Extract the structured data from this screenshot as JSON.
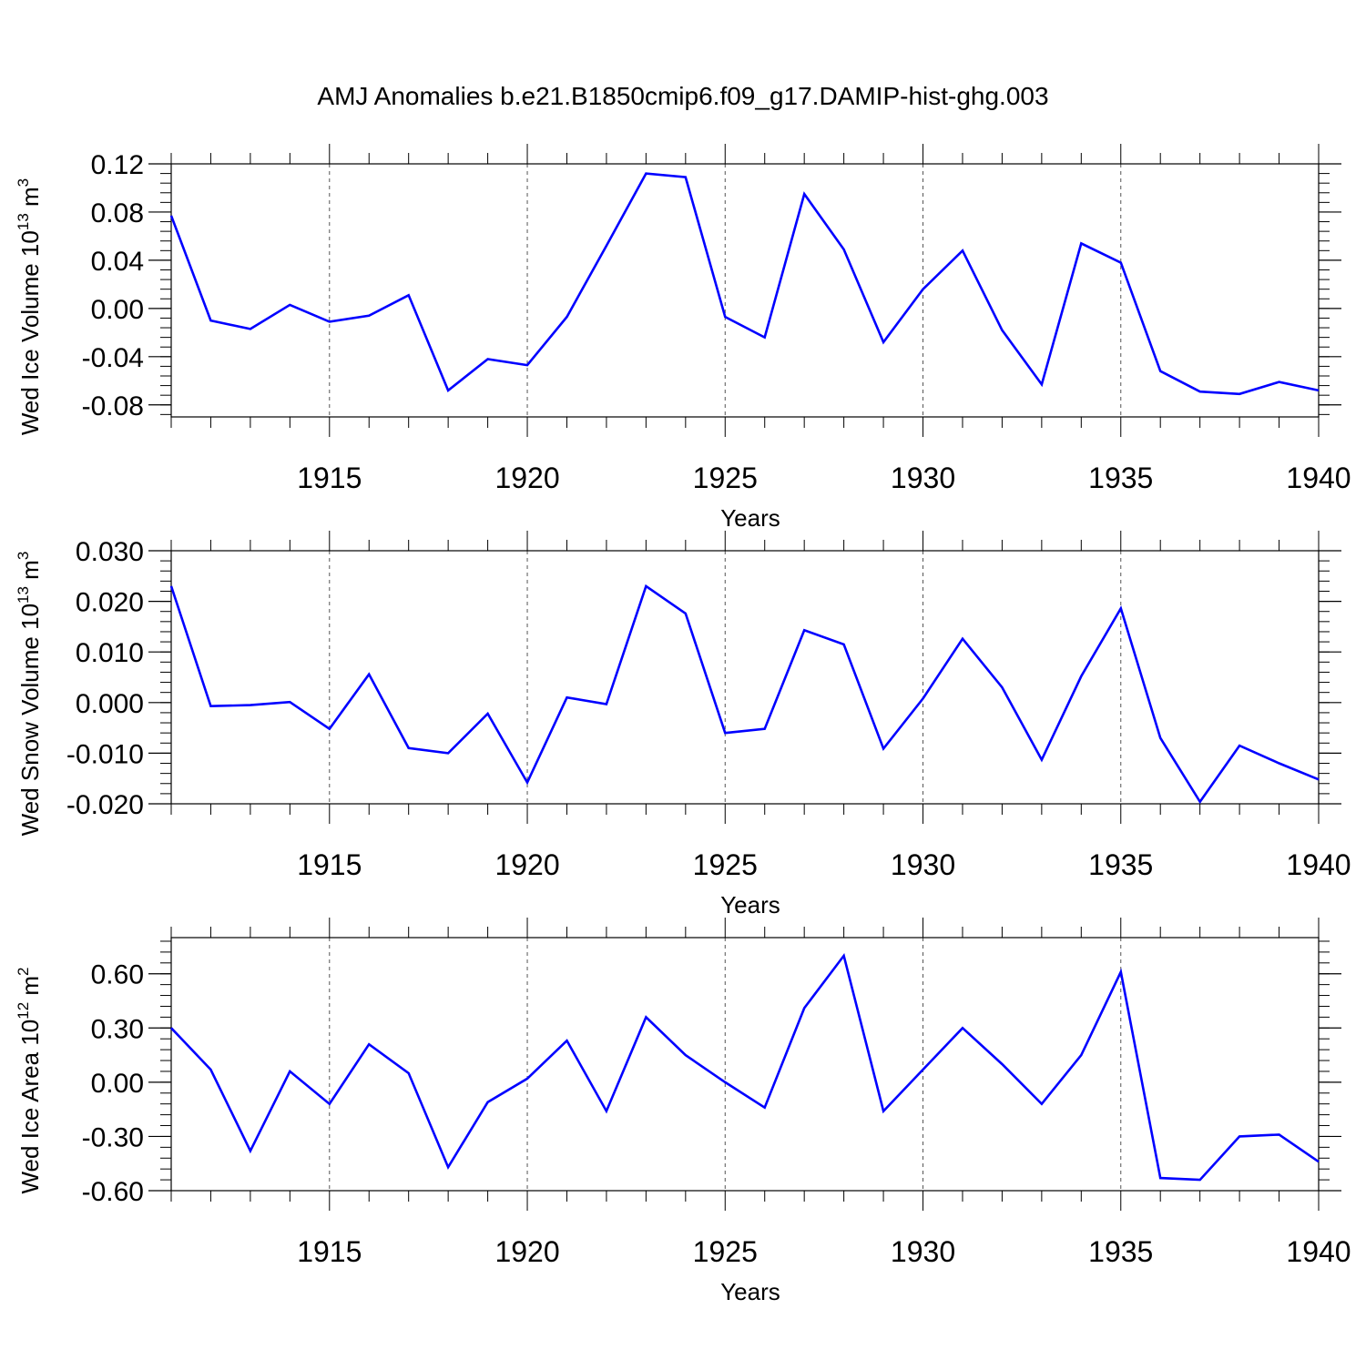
{
  "title": "AMJ Anomalies b.e21.B1850cmip6.f09_g17.DAMIP-hist-ghg.003",
  "line_color": "#0000ff",
  "chart_data": [
    {
      "type": "line",
      "ylabel": {
        "prefix": "Wed Ice Volume 10",
        "sup": "13",
        "mid": " m",
        "sup2": "3"
      },
      "xlabel": "Years",
      "xlim": [
        1911,
        1940
      ],
      "ylim": [
        -0.09,
        0.12
      ],
      "yticks": [
        -0.08,
        -0.04,
        0.0,
        0.04,
        0.08,
        0.12
      ],
      "ytick_labels": [
        "-0.08",
        "-0.04",
        "0.00",
        "0.04",
        "0.08",
        "0.12"
      ],
      "xticks": [
        1915,
        1920,
        1925,
        1930,
        1935,
        1940
      ],
      "xtick_labels": [
        "1915",
        "1920",
        "1925",
        "1930",
        "1935",
        "1940"
      ],
      "x": [
        1911,
        1912,
        1913,
        1914,
        1915,
        1916,
        1917,
        1918,
        1919,
        1920,
        1921,
        1922,
        1923,
        1924,
        1925,
        1926,
        1927,
        1928,
        1929,
        1930,
        1931,
        1932,
        1933,
        1934,
        1935,
        1936,
        1937,
        1938,
        1939,
        1940
      ],
      "values": [
        0.077,
        -0.01,
        -0.017,
        0.003,
        -0.011,
        -0.006,
        0.011,
        -0.068,
        -0.042,
        -0.047,
        -0.007,
        0.052,
        0.112,
        0.109,
        -0.007,
        -0.024,
        0.095,
        0.049,
        -0.028,
        0.016,
        0.048,
        -0.018,
        -0.063,
        0.054,
        0.038,
        -0.052,
        -0.069,
        -0.071,
        -0.061,
        -0.068
      ]
    },
    {
      "type": "line",
      "ylabel": {
        "prefix": "Wed Snow Volume 10",
        "sup": "13",
        "mid": " m",
        "sup2": "3"
      },
      "xlabel": "Years",
      "xlim": [
        1911,
        1940
      ],
      "ylim": [
        -0.02,
        0.03
      ],
      "yticks": [
        -0.02,
        -0.01,
        0.0,
        0.01,
        0.02,
        0.03
      ],
      "ytick_labels": [
        "-0.020",
        "-0.010",
        "0.000",
        "0.010",
        "0.020",
        "0.030"
      ],
      "xticks": [
        1915,
        1920,
        1925,
        1930,
        1935,
        1940
      ],
      "xtick_labels": [
        "1915",
        "1920",
        "1925",
        "1930",
        "1935",
        "1940"
      ],
      "x": [
        1911,
        1912,
        1913,
        1914,
        1915,
        1916,
        1917,
        1918,
        1919,
        1920,
        1921,
        1922,
        1923,
        1924,
        1925,
        1926,
        1927,
        1928,
        1929,
        1930,
        1931,
        1932,
        1933,
        1934,
        1935,
        1936,
        1937,
        1938,
        1939,
        1940
      ],
      "values": [
        0.023,
        -0.0007,
        -0.0005,
        0.0001,
        -0.0052,
        0.0056,
        -0.009,
        -0.01,
        -0.0022,
        -0.0158,
        0.001,
        -0.0003,
        0.023,
        0.0176,
        -0.006,
        -0.0052,
        0.0143,
        0.0115,
        -0.0091,
        0.0008,
        0.0126,
        0.003,
        -0.0113,
        0.0052,
        0.0186,
        -0.007,
        -0.0196,
        -0.0085,
        -0.012,
        -0.0152
      ]
    },
    {
      "type": "line",
      "ylabel": {
        "prefix": "Wed Ice Area 10",
        "sup": "12",
        "mid": " m",
        "sup2": "2"
      },
      "xlabel": "Years",
      "xlim": [
        1911,
        1940
      ],
      "ylim": [
        -0.6,
        0.8
      ],
      "yticks": [
        -0.6,
        -0.3,
        0.0,
        0.3,
        0.6
      ],
      "ytick_labels": [
        "-0.60",
        "-0.30",
        "0.00",
        "0.30",
        "0.60"
      ],
      "xticks": [
        1915,
        1920,
        1925,
        1930,
        1935,
        1940
      ],
      "xtick_labels": [
        "1915",
        "1920",
        "1925",
        "1930",
        "1935",
        "1940"
      ],
      "x": [
        1911,
        1912,
        1913,
        1914,
        1915,
        1916,
        1917,
        1918,
        1919,
        1920,
        1921,
        1922,
        1923,
        1924,
        1925,
        1926,
        1927,
        1928,
        1929,
        1930,
        1931,
        1932,
        1933,
        1934,
        1935,
        1936,
        1937,
        1938,
        1939,
        1940
      ],
      "values": [
        0.3,
        0.07,
        -0.38,
        0.06,
        -0.12,
        0.21,
        0.05,
        -0.47,
        -0.11,
        0.02,
        0.23,
        -0.16,
        0.36,
        0.15,
        -0.0,
        -0.14,
        0.41,
        0.7,
        -0.16,
        0.07,
        0.3,
        0.1,
        -0.12,
        0.15,
        0.61,
        -0.53,
        -0.54,
        -0.3,
        -0.29,
        -0.44
      ]
    }
  ]
}
